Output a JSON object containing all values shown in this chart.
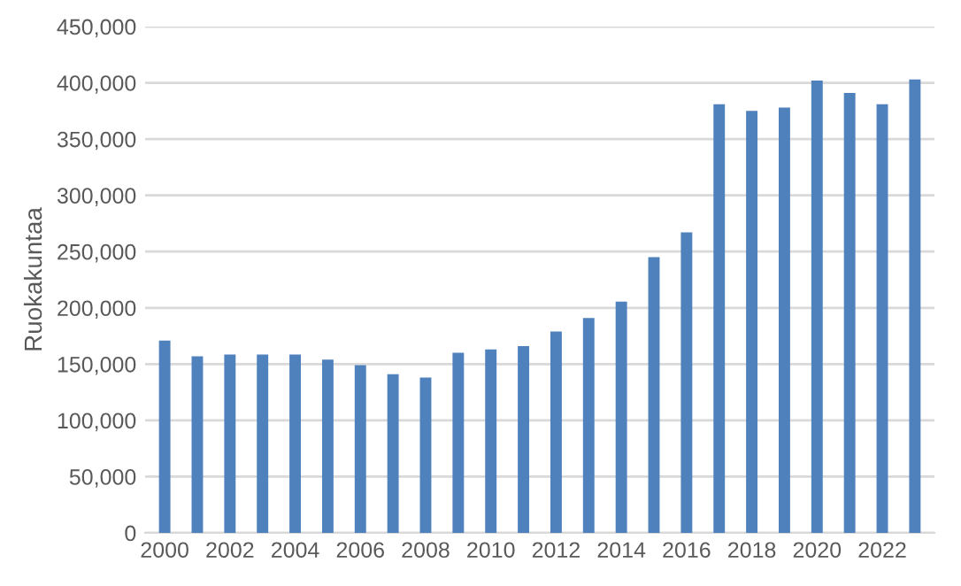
{
  "chart_data": {
    "type": "bar",
    "ylabel": "Ruokakuntaa",
    "categories": [
      "2000",
      null,
      "2002",
      null,
      "2004",
      null,
      "2006",
      null,
      "2008",
      null,
      "2010",
      null,
      "2012",
      null,
      "2014",
      null,
      "2016",
      null,
      "2018",
      null,
      "2020",
      null,
      "2022",
      null
    ],
    "values": [
      171000,
      157000,
      158500,
      158500,
      158500,
      154000,
      149000,
      141000,
      138000,
      160000,
      163000,
      166000,
      179000,
      191000,
      205500,
      245000,
      267000,
      381000,
      375000,
      378000,
      402000,
      391000,
      381000,
      403000
    ],
    "color": "#4f81bd",
    "ylim": [
      0,
      450000
    ],
    "yticks": [
      {
        "value": 0,
        "label": "0"
      },
      {
        "value": 50000,
        "label": "50,000"
      },
      {
        "value": 100000,
        "label": "100,000"
      },
      {
        "value": 150000,
        "label": "150,000"
      },
      {
        "value": 200000,
        "label": "200,000"
      },
      {
        "value": 250000,
        "label": "250,000"
      },
      {
        "value": 300000,
        "label": "300,000"
      },
      {
        "value": 350000,
        "label": "350,000"
      },
      {
        "value": 400000,
        "label": "400,000"
      },
      {
        "value": 450000,
        "label": "450,000"
      }
    ],
    "grid": "y"
  }
}
